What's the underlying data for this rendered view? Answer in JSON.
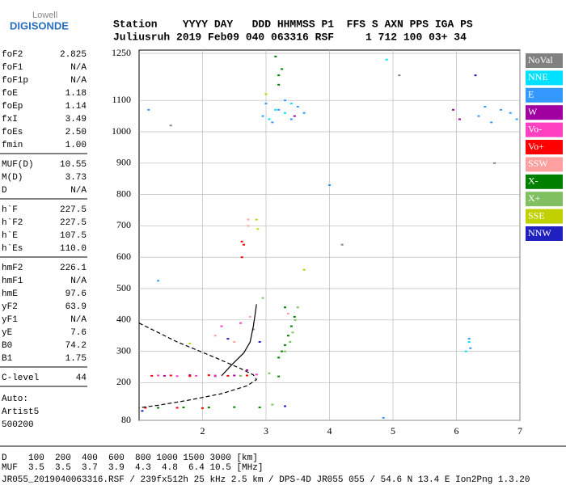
{
  "logo": {
    "top": "Lowell",
    "name": "DIGISONDE"
  },
  "header": {
    "line1": "Station    YYYY DAY   DDD HHMMSS P1  FFS S AXN PPS IGA PS",
    "line2": "Juliusruh 2019 Feb09 040 063316 RSF     1 712 100 03+ 34"
  },
  "params": [
    [
      {
        "name": "foF2",
        "value": "2.825"
      },
      {
        "name": "foF1",
        "value": "N/A"
      },
      {
        "name": "foF1p",
        "value": "N/A"
      },
      {
        "name": "foE",
        "value": "1.18"
      },
      {
        "name": "foEp",
        "value": "1.14"
      },
      {
        "name": "fxI",
        "value": "3.49"
      },
      {
        "name": "foEs",
        "value": "2.50"
      },
      {
        "name": "fmin",
        "value": "1.00"
      }
    ],
    [
      {
        "name": "MUF(D)",
        "value": "10.55"
      },
      {
        "name": "M(D)",
        "value": "3.73"
      },
      {
        "name": "D",
        "value": "N/A"
      }
    ],
    [
      {
        "name": "h`F",
        "value": "227.5"
      },
      {
        "name": "h`F2",
        "value": "227.5"
      },
      {
        "name": "h`E",
        "value": "107.5"
      },
      {
        "name": "h`Es",
        "value": "110.0"
      }
    ],
    [
      {
        "name": "hmF2",
        "value": "226.1"
      },
      {
        "name": "hmF1",
        "value": "N/A"
      },
      {
        "name": "hmE",
        "value": "97.6"
      },
      {
        "name": "yF2",
        "value": "63.9"
      },
      {
        "name": "yF1",
        "value": "N/A"
      },
      {
        "name": "yE",
        "value": "7.6"
      },
      {
        "name": "B0",
        "value": "74.2"
      },
      {
        "name": "B1",
        "value": "1.75"
      }
    ],
    [
      {
        "name": "C-level",
        "value": "44"
      }
    ]
  ],
  "notes": [
    "Auto:",
    "Artist5",
    "500200"
  ],
  "bottom": {
    "line1": "D    100  200  400  600  800 1000 1500 3000 [km]",
    "line2": "MUF  3.5  3.5  3.7  3.9  4.3  4.8  6.4 10.5 [MHz]",
    "line3": "JR055_2019040063316.RSF / 239fx512h 25 kHz 2.5 km / DPS-4D JR055 055 / 54.6 N 13.4 E Ion2Png 1.3.20"
  },
  "chart_data": {
    "type": "scatter",
    "xlim": [
      1,
      7
    ],
    "xticks": [
      2,
      3,
      4,
      5,
      6,
      7
    ],
    "ylim": [
      80,
      1250
    ],
    "yticks": [
      80,
      200,
      300,
      400,
      500,
      600,
      700,
      800,
      900,
      1000,
      1100,
      1250
    ],
    "grid": true,
    "series": [
      {
        "name": "NoVal",
        "color": "#808080",
        "x": [
          1.5,
          2.8,
          4.2,
          5.1,
          6.6
        ],
        "values": [
          1020,
          370,
          640,
          1180,
          900
        ]
      },
      {
        "name": "NNE",
        "color": "#00e0ff",
        "x": [
          3.05,
          3.15,
          3.3,
          3.4,
          4.9,
          6.15,
          6.2
        ],
        "values": [
          1040,
          1070,
          1060,
          1090,
          1230,
          300,
          330
        ]
      },
      {
        "name": "E",
        "color": "#3399ff",
        "x": [
          2.95,
          3.0,
          3.1,
          3.2,
          3.3,
          3.4,
          3.5,
          3.6,
          6.35,
          6.45,
          6.55,
          6.7,
          6.85,
          6.95,
          6.2,
          6.22,
          4.0,
          4.85,
          1.15,
          1.3
        ],
        "values": [
          1050,
          1090,
          1030,
          1070,
          1100,
          1040,
          1080,
          1060,
          1050,
          1080,
          1030,
          1070,
          1060,
          1040,
          340,
          310,
          830,
          88,
          1070,
          525
        ]
      },
      {
        "name": "W",
        "color": "#a000a0",
        "x": [
          1.4,
          1.8,
          2.2,
          2.5,
          2.7,
          3.45,
          5.95,
          6.05
        ],
        "values": [
          222,
          224,
          221,
          223,
          240,
          1050,
          1070,
          1040
        ]
      },
      {
        "name": "Vo-",
        "color": "#ff40c0",
        "x": [
          1.3,
          1.6,
          1.9,
          2.2,
          2.6,
          2.85,
          2.3,
          2.6
        ],
        "values": [
          223,
          221,
          222,
          223,
          222,
          226,
          380,
          390
        ]
      },
      {
        "name": "Vo+",
        "color": "#ff0000",
        "x": [
          1.2,
          1.5,
          1.8,
          2.1,
          2.4,
          2.7,
          2.62,
          2.62,
          2.65,
          1.1,
          1.6,
          2.0
        ],
        "values": [
          222,
          223,
          221,
          224,
          222,
          223,
          600,
          650,
          640,
          120,
          120,
          119
        ]
      },
      {
        "name": "SSW",
        "color": "#ffa0a0",
        "x": [
          2.72,
          2.72,
          2.75,
          2.2,
          2.5,
          3.35
        ],
        "values": [
          700,
          720,
          410,
          350,
          330,
          420
        ]
      },
      {
        "name": "X-",
        "color": "#008000",
        "x": [
          1.3,
          1.7,
          2.1,
          2.5,
          2.9,
          3.2,
          3.25,
          3.3,
          3.35,
          3.4,
          3.45,
          3.3,
          3.2,
          3.2,
          3.2,
          3.15,
          3.25
        ],
        "values": [
          120,
          121,
          121,
          122,
          121,
          280,
          300,
          320,
          350,
          380,
          410,
          440,
          220,
          1150,
          1180,
          1240,
          1200
        ]
      },
      {
        "name": "X+",
        "color": "#80c060",
        "x": [
          3.3,
          3.38,
          3.42,
          3.46,
          3.5,
          2.95,
          3.05,
          3.1,
          2.6
        ],
        "values": [
          300,
          330,
          360,
          400,
          440,
          470,
          230,
          130,
          222
        ]
      },
      {
        "name": "SSE",
        "color": "#c0d000",
        "x": [
          2.85,
          2.87,
          1.8,
          3.6,
          3.0
        ],
        "values": [
          720,
          690,
          325,
          560,
          1120
        ]
      },
      {
        "name": "NNW",
        "color": "#2020c0",
        "x": [
          1.05,
          2.4,
          2.9,
          3.3,
          6.3
        ],
        "values": [
          110,
          340,
          330,
          125,
          1180
        ]
      }
    ],
    "trace": {
      "color": "#000000",
      "x": [
        2.3,
        2.45,
        2.55,
        2.65,
        2.75,
        2.8,
        2.83,
        2.85
      ],
      "values": [
        222,
        255,
        275,
        295,
        330,
        380,
        420,
        450
      ]
    },
    "profile": {
      "color": "#000000",
      "x": [
        1.0,
        1.6,
        2.2,
        2.6,
        2.8,
        2.85,
        2.7,
        2.3,
        1.8,
        1.3,
        1.0
      ],
      "values": [
        390,
        330,
        280,
        245,
        225,
        210,
        190,
        165,
        145,
        128,
        120
      ]
    }
  }
}
